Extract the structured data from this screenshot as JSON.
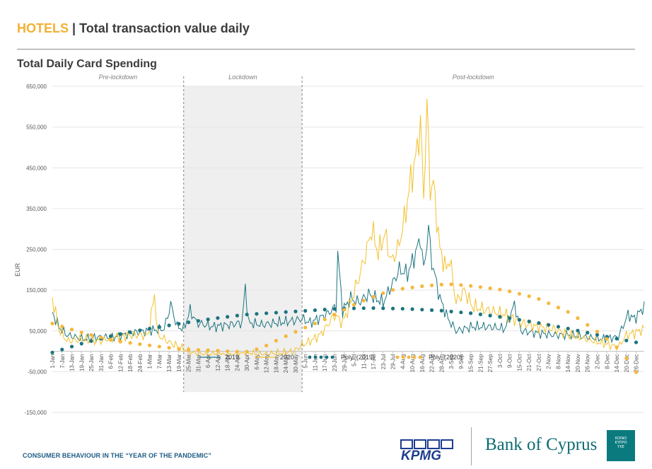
{
  "header": {
    "category": "HOTELS",
    "separator": "|",
    "title": "Total transaction value daily"
  },
  "subtitle": "Total Daily Card Spending",
  "footer": {
    "text": "CONSUMER BEHAVIOUR IN THE “YEAR OF THE PANDEMIC”",
    "kpmg_label": "KPMG",
    "boc_label": "Bank of Cyprus",
    "boc_logo_text": [
      "ΚΟΙΝΟ",
      "ΚΥΠΡΟ",
      "ΥΧΕ"
    ]
  },
  "colors": {
    "series_2019": "#1d7480",
    "series_2020": "#f2c12e",
    "poly_2019": "#1d7480",
    "poly_2020": "#f6b73c",
    "lockdown_band": "#efefef",
    "grid": "#e6e6e6"
  },
  "chart_data": {
    "type": "line",
    "ylabel": "EUR",
    "ylim": [
      -150000,
      650000
    ],
    "yticks": [
      -150000,
      -50000,
      50000,
      150000,
      250000,
      350000,
      450000,
      550000,
      650000
    ],
    "ytick_labels": [
      "-150,000",
      "-50,000",
      "50,000",
      "150,000",
      "250,000",
      "350,000",
      "450,000",
      "550,000",
      "650,000"
    ],
    "x_tick_labels": [
      "1-Jan",
      "7-Jan",
      "13-Jan",
      "19-Jan",
      "25-Jan",
      "31-Jan",
      "6-Feb",
      "12-Feb",
      "18-Feb",
      "24-Feb",
      "1-Mar",
      "7-Mar",
      "13-Mar",
      "19-Mar",
      "25-Mar",
      "31-Mar",
      "6-Apr",
      "12-Apr",
      "18-Apr",
      "24-Apr",
      "30-Apr",
      "6-May",
      "12-May",
      "18-May",
      "24-May",
      "30-May",
      "5-Jun",
      "11-Jun",
      "17-Jun",
      "23-Jun",
      "29-Jun",
      "5-Jul",
      "11-Jul",
      "17-Jul",
      "23-Jul",
      "29-Jul",
      "4-Aug",
      "10-Aug",
      "16-Aug",
      "22-Aug",
      "28-Aug",
      "3-Sep",
      "9-Sep",
      "15-Sep",
      "21-Sep",
      "27-Sep",
      "3-Oct",
      "9-Oct",
      "15-Oct",
      "21-Oct",
      "27-Oct",
      "2-Nov",
      "8-Nov",
      "14-Nov",
      "20-Nov",
      "26-Nov",
      "2-Dec",
      "8-Dec",
      "14-Dec",
      "20-Dec",
      "26-Dec"
    ],
    "periods": [
      {
        "label": "Pre-lockdown",
        "start_day": 1,
        "end_day": 82
      },
      {
        "label": "Lockdown",
        "start_day": 82,
        "end_day": 155
      },
      {
        "label": "Post-lockdown",
        "start_day": 155,
        "end_day": 366
      }
    ],
    "shaded_period": [
      82,
      155
    ],
    "series": [
      {
        "name": "2019",
        "anchors": [
          [
            1,
            95000
          ],
          [
            5,
            60000
          ],
          [
            10,
            40000
          ],
          [
            20,
            30000
          ],
          [
            30,
            35000
          ],
          [
            40,
            35000
          ],
          [
            50,
            45000
          ],
          [
            60,
            50000
          ],
          [
            70,
            55000
          ],
          [
            74,
            115000
          ],
          [
            78,
            60000
          ],
          [
            82,
            55000
          ],
          [
            86,
            100000
          ],
          [
            90,
            70000
          ],
          [
            100,
            60000
          ],
          [
            110,
            65000
          ],
          [
            118,
            70000
          ],
          [
            120,
            160000
          ],
          [
            122,
            70000
          ],
          [
            130,
            65000
          ],
          [
            140,
            70000
          ],
          [
            150,
            75000
          ],
          [
            155,
            80000
          ],
          [
            160,
            70000
          ],
          [
            165,
            80000
          ],
          [
            170,
            90000
          ],
          [
            176,
            110000
          ],
          [
            177,
            240000
          ],
          [
            180,
            100000
          ],
          [
            185,
            130000
          ],
          [
            190,
            120000
          ],
          [
            196,
            140000
          ],
          [
            200,
            130000
          ],
          [
            205,
            120000
          ],
          [
            210,
            160000
          ],
          [
            215,
            200000
          ],
          [
            220,
            190000
          ],
          [
            225,
            240000
          ],
          [
            228,
            280000
          ],
          [
            230,
            200000
          ],
          [
            233,
            300000
          ],
          [
            235,
            220000
          ],
          [
            240,
            130000
          ],
          [
            245,
            80000
          ],
          [
            250,
            50000
          ],
          [
            260,
            60000
          ],
          [
            270,
            60000
          ],
          [
            280,
            55000
          ],
          [
            286,
            115000
          ],
          [
            290,
            50000
          ],
          [
            300,
            45000
          ],
          [
            310,
            40000
          ],
          [
            320,
            40000
          ],
          [
            330,
            35000
          ],
          [
            340,
            30000
          ],
          [
            350,
            35000
          ],
          [
            356,
            90000
          ],
          [
            360,
            80000
          ],
          [
            366,
            110000
          ]
        ],
        "amplitude": 25000
      },
      {
        "name": "2020",
        "anchors": [
          [
            1,
            130000
          ],
          [
            5,
            55000
          ],
          [
            10,
            25000
          ],
          [
            20,
            30000
          ],
          [
            30,
            25000
          ],
          [
            40,
            35000
          ],
          [
            50,
            40000
          ],
          [
            60,
            40000
          ],
          [
            64,
            140000
          ],
          [
            66,
            40000
          ],
          [
            74,
            20000
          ],
          [
            80,
            10000
          ],
          [
            82,
            5000
          ],
          [
            90,
            -7000
          ],
          [
            100,
            -8000
          ],
          [
            110,
            -10000
          ],
          [
            120,
            -5000
          ],
          [
            130,
            -8000
          ],
          [
            140,
            -5000
          ],
          [
            150,
            0
          ],
          [
            155,
            15000
          ],
          [
            160,
            25000
          ],
          [
            166,
            40000
          ],
          [
            170,
            60000
          ],
          [
            175,
            90000
          ],
          [
            180,
            70000
          ],
          [
            185,
            120000
          ],
          [
            190,
            180000
          ],
          [
            195,
            250000
          ],
          [
            198,
            300000
          ],
          [
            202,
            240000
          ],
          [
            206,
            290000
          ],
          [
            210,
            220000
          ],
          [
            214,
            250000
          ],
          [
            218,
            320000
          ],
          [
            222,
            420000
          ],
          [
            225,
            470000
          ],
          [
            228,
            560000
          ],
          [
            230,
            380000
          ],
          [
            232,
            600000
          ],
          [
            234,
            400000
          ],
          [
            236,
            410000
          ],
          [
            240,
            250000
          ],
          [
            244,
            200000
          ],
          [
            246,
            230000
          ],
          [
            250,
            120000
          ],
          [
            255,
            150000
          ],
          [
            260,
            110000
          ],
          [
            270,
            100000
          ],
          [
            280,
            90000
          ],
          [
            290,
            70000
          ],
          [
            300,
            60000
          ],
          [
            310,
            55000
          ],
          [
            320,
            40000
          ],
          [
            330,
            30000
          ],
          [
            340,
            20000
          ],
          [
            350,
            10000
          ],
          [
            355,
            40000
          ],
          [
            360,
            45000
          ],
          [
            366,
            55000
          ]
        ],
        "amplitude": 28000
      },
      {
        "name": "Poly. (2019)",
        "anchors": [
          [
            1,
            -3000
          ],
          [
            20,
            20000
          ],
          [
            40,
            40000
          ],
          [
            60,
            55000
          ],
          [
            80,
            68000
          ],
          [
            100,
            80000
          ],
          [
            120,
            90000
          ],
          [
            140,
            95000
          ],
          [
            160,
            100000
          ],
          [
            180,
            105000
          ],
          [
            200,
            106000
          ],
          [
            220,
            104000
          ],
          [
            240,
            100000
          ],
          [
            260,
            93000
          ],
          [
            280,
            83000
          ],
          [
            300,
            70000
          ],
          [
            320,
            55000
          ],
          [
            340,
            38000
          ],
          [
            366,
            18000
          ]
        ]
      },
      {
        "name": "Poly. (2020)",
        "anchors": [
          [
            1,
            68000
          ],
          [
            20,
            45000
          ],
          [
            40,
            25000
          ],
          [
            60,
            15000
          ],
          [
            80,
            5000
          ],
          [
            100,
            2000
          ],
          [
            120,
            -2000
          ],
          [
            130,
            8000
          ],
          [
            140,
            28000
          ],
          [
            155,
            55000
          ],
          [
            170,
            80000
          ],
          [
            190,
            120000
          ],
          [
            210,
            150000
          ],
          [
            230,
            160000
          ],
          [
            245,
            165000
          ],
          [
            260,
            160000
          ],
          [
            280,
            150000
          ],
          [
            300,
            130000
          ],
          [
            320,
            95000
          ],
          [
            340,
            40000
          ],
          [
            352,
            0
          ],
          [
            366,
            -80000
          ]
        ]
      }
    ],
    "legend": [
      "2019",
      "2020",
      "Poly. (2019)",
      "Poly. (2020)"
    ],
    "legend_position": "bottom"
  }
}
